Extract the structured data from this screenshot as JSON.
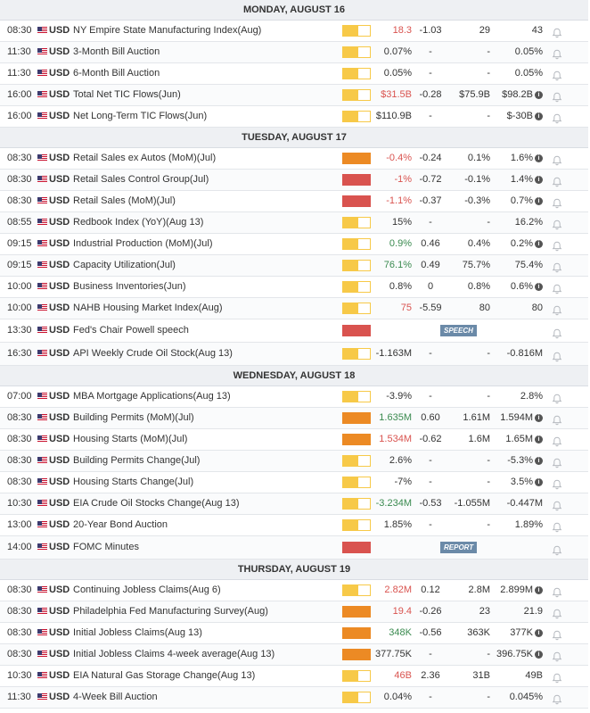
{
  "colors": {
    "low": "#f7c948",
    "medium": "#ec8a24",
    "high": "#d9534f",
    "positive": "#3a8a4f",
    "negative": "#d9534f"
  },
  "days": [
    {
      "label": "MONDAY, AUGUST 16",
      "events": [
        {
          "time": "08:30",
          "currency": "USD",
          "name": "NY Empire State Manufacturing Index(Aug)",
          "impact": "low",
          "impact_fill": 0.55,
          "actual": "18.3",
          "actual_dir": "down",
          "deviation": "-1.03",
          "consensus": "29",
          "previous": "43",
          "previous_info": false
        },
        {
          "time": "11:30",
          "currency": "USD",
          "name": "3-Month Bill Auction",
          "impact": "low",
          "impact_fill": 0.55,
          "actual": "0.07%",
          "actual_dir": "neutral",
          "deviation": "-",
          "consensus": "-",
          "previous": "0.05%",
          "previous_info": false
        },
        {
          "time": "11:30",
          "currency": "USD",
          "name": "6-Month Bill Auction",
          "impact": "low",
          "impact_fill": 0.55,
          "actual": "0.05%",
          "actual_dir": "neutral",
          "deviation": "-",
          "consensus": "-",
          "previous": "0.05%",
          "previous_info": false
        },
        {
          "time": "16:00",
          "currency": "USD",
          "name": "Total Net TIC Flows(Jun)",
          "impact": "low",
          "impact_fill": 0.55,
          "actual": "$31.5B",
          "actual_dir": "down",
          "deviation": "-0.28",
          "consensus": "$75.9B",
          "previous": "$98.2B",
          "previous_info": true
        },
        {
          "time": "16:00",
          "currency": "USD",
          "name": "Net Long-Term TIC Flows(Jun)",
          "impact": "low",
          "impact_fill": 0.55,
          "actual": "$110.9B",
          "actual_dir": "neutral",
          "deviation": "-",
          "consensus": "-",
          "previous": "$-30B",
          "previous_info": true
        }
      ]
    },
    {
      "label": "TUESDAY, AUGUST 17",
      "events": [
        {
          "time": "08:30",
          "currency": "USD",
          "name": "Retail Sales ex Autos (MoM)(Jul)",
          "impact": "medium",
          "impact_fill": 1.0,
          "actual": "-0.4%",
          "actual_dir": "down",
          "deviation": "-0.24",
          "consensus": "0.1%",
          "previous": "1.6%",
          "previous_info": true
        },
        {
          "time": "08:30",
          "currency": "USD",
          "name": "Retail Sales Control Group(Jul)",
          "impact": "high",
          "impact_fill": 1.0,
          "actual": "-1%",
          "actual_dir": "down",
          "deviation": "-0.72",
          "consensus": "-0.1%",
          "previous": "1.4%",
          "previous_info": true
        },
        {
          "time": "08:30",
          "currency": "USD",
          "name": "Retail Sales (MoM)(Jul)",
          "impact": "high",
          "impact_fill": 1.0,
          "actual": "-1.1%",
          "actual_dir": "down",
          "deviation": "-0.37",
          "consensus": "-0.3%",
          "previous": "0.7%",
          "previous_info": true
        },
        {
          "time": "08:55",
          "currency": "USD",
          "name": "Redbook Index (YoY)(Aug 13)",
          "impact": "low",
          "impact_fill": 0.55,
          "actual": "15%",
          "actual_dir": "neutral",
          "deviation": "-",
          "consensus": "-",
          "previous": "16.2%",
          "previous_info": false
        },
        {
          "time": "09:15",
          "currency": "USD",
          "name": "Industrial Production (MoM)(Jul)",
          "impact": "low",
          "impact_fill": 0.55,
          "actual": "0.9%",
          "actual_dir": "up",
          "deviation": "0.46",
          "consensus": "0.4%",
          "previous": "0.2%",
          "previous_info": true
        },
        {
          "time": "09:15",
          "currency": "USD",
          "name": "Capacity Utilization(Jul)",
          "impact": "low",
          "impact_fill": 0.55,
          "actual": "76.1%",
          "actual_dir": "up",
          "deviation": "0.49",
          "consensus": "75.7%",
          "previous": "75.4%",
          "previous_info": false
        },
        {
          "time": "10:00",
          "currency": "USD",
          "name": "Business Inventories(Jun)",
          "impact": "low",
          "impact_fill": 0.55,
          "actual": "0.8%",
          "actual_dir": "neutral",
          "deviation": "0",
          "consensus": "0.8%",
          "previous": "0.6%",
          "previous_info": true
        },
        {
          "time": "10:00",
          "currency": "USD",
          "name": "NAHB Housing Market Index(Aug)",
          "impact": "low",
          "impact_fill": 0.55,
          "actual": "75",
          "actual_dir": "down",
          "deviation": "-5.59",
          "consensus": "80",
          "previous": "80",
          "previous_info": false
        },
        {
          "time": "13:30",
          "currency": "USD",
          "name": "Fed's Chair Powell speech",
          "impact": "high",
          "impact_fill": 1.0,
          "badge": "SPEECH",
          "tall": true
        },
        {
          "time": "16:30",
          "currency": "USD",
          "name": "API Weekly Crude Oil Stock(Aug 13)",
          "impact": "low",
          "impact_fill": 0.55,
          "actual": "-1.163M",
          "actual_dir": "neutral",
          "deviation": "-",
          "consensus": "-",
          "previous": "-0.816M",
          "previous_info": false,
          "tall": true
        }
      ]
    },
    {
      "label": "WEDNESDAY, AUGUST 18",
      "events": [
        {
          "time": "07:00",
          "currency": "USD",
          "name": "MBA Mortgage Applications(Aug 13)",
          "impact": "low",
          "impact_fill": 0.55,
          "actual": "-3.9%",
          "actual_dir": "neutral",
          "deviation": "-",
          "consensus": "-",
          "previous": "2.8%",
          "previous_info": false
        },
        {
          "time": "08:30",
          "currency": "USD",
          "name": "Building Permits (MoM)(Jul)",
          "impact": "medium",
          "impact_fill": 1.0,
          "actual": "1.635M",
          "actual_dir": "up",
          "deviation": "0.60",
          "consensus": "1.61M",
          "previous": "1.594M",
          "previous_info": true
        },
        {
          "time": "08:30",
          "currency": "USD",
          "name": "Housing Starts (MoM)(Jul)",
          "impact": "medium",
          "impact_fill": 1.0,
          "actual": "1.534M",
          "actual_dir": "down",
          "deviation": "-0.62",
          "consensus": "1.6M",
          "previous": "1.65M",
          "previous_info": true
        },
        {
          "time": "08:30",
          "currency": "USD",
          "name": "Building Permits Change(Jul)",
          "impact": "low",
          "impact_fill": 0.55,
          "actual": "2.6%",
          "actual_dir": "neutral",
          "deviation": "-",
          "consensus": "-",
          "previous": "-5.3%",
          "previous_info": true
        },
        {
          "time": "08:30",
          "currency": "USD",
          "name": "Housing Starts Change(Jul)",
          "impact": "low",
          "impact_fill": 0.55,
          "actual": "-7%",
          "actual_dir": "neutral",
          "deviation": "-",
          "consensus": "-",
          "previous": "3.5%",
          "previous_info": true
        },
        {
          "time": "10:30",
          "currency": "USD",
          "name": "EIA Crude Oil Stocks Change(Aug 13)",
          "impact": "low",
          "impact_fill": 0.55,
          "actual": "-3.234M",
          "actual_dir": "up",
          "deviation": "-0.53",
          "consensus": "-1.055M",
          "previous": "-0.447M",
          "previous_info": false
        },
        {
          "time": "13:00",
          "currency": "USD",
          "name": "20-Year Bond Auction",
          "impact": "low",
          "impact_fill": 0.55,
          "actual": "1.85%",
          "actual_dir": "neutral",
          "deviation": "-",
          "consensus": "-",
          "previous": "1.89%",
          "previous_info": false
        },
        {
          "time": "14:00",
          "currency": "USD",
          "name": "FOMC Minutes",
          "impact": "high",
          "impact_fill": 1.0,
          "badge": "REPORT",
          "tall": true
        }
      ]
    },
    {
      "label": "THURSDAY, AUGUST 19",
      "events": [
        {
          "time": "08:30",
          "currency": "USD",
          "name": "Continuing Jobless Claims(Aug 6)",
          "impact": "low",
          "impact_fill": 0.55,
          "actual": "2.82M",
          "actual_dir": "down",
          "deviation": "0.12",
          "consensus": "2.8M",
          "previous": "2.899M",
          "previous_info": true
        },
        {
          "time": "08:30",
          "currency": "USD",
          "name": "Philadelphia Fed Manufacturing Survey(Aug)",
          "impact": "medium",
          "impact_fill": 1.0,
          "actual": "19.4",
          "actual_dir": "down",
          "deviation": "-0.26",
          "consensus": "23",
          "previous": "21.9",
          "previous_info": false
        },
        {
          "time": "08:30",
          "currency": "USD",
          "name": "Initial Jobless Claims(Aug 13)",
          "impact": "medium",
          "impact_fill": 1.0,
          "actual": "348K",
          "actual_dir": "up",
          "deviation": "-0.56",
          "consensus": "363K",
          "previous": "377K",
          "previous_info": true
        },
        {
          "time": "08:30",
          "currency": "USD",
          "name": "Initial Jobless Claims 4-week average(Aug 13)",
          "impact": "medium",
          "impact_fill": 1.0,
          "actual": "377.75K",
          "actual_dir": "neutral",
          "deviation": "-",
          "consensus": "-",
          "previous": "396.75K",
          "previous_info": true
        },
        {
          "time": "10:30",
          "currency": "USD",
          "name": "EIA Natural Gas Storage Change(Aug 13)",
          "impact": "low",
          "impact_fill": 0.55,
          "actual": "46B",
          "actual_dir": "down",
          "deviation": "2.36",
          "consensus": "31B",
          "previous": "49B",
          "previous_info": false
        },
        {
          "time": "11:30",
          "currency": "USD",
          "name": "4-Week Bill Auction",
          "impact": "low",
          "impact_fill": 0.55,
          "actual": "0.04%",
          "actual_dir": "neutral",
          "deviation": "-",
          "consensus": "-",
          "previous": "0.045%",
          "previous_info": false
        }
      ]
    }
  ]
}
